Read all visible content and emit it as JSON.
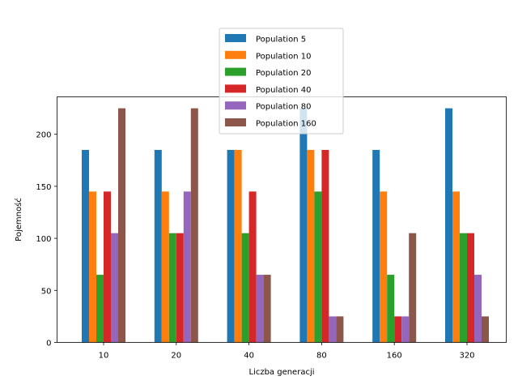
{
  "chart_data": {
    "type": "bar",
    "title": "",
    "xlabel": "Liczba generacji",
    "ylabel": "Pojemność",
    "categories": [
      "10",
      "20",
      "40",
      "80",
      "160",
      "320"
    ],
    "ylim": [
      0,
      236
    ],
    "yticks": [
      0,
      50,
      100,
      150,
      200
    ],
    "grid": false,
    "legend_position": "top-center",
    "series": [
      {
        "name": "Population 5",
        "color": "#1f77b4",
        "values": [
          185,
          185,
          185,
          225,
          185,
          225
        ]
      },
      {
        "name": "Population 10",
        "color": "#ff7f0e",
        "values": [
          145,
          145,
          185,
          185,
          145,
          145
        ]
      },
      {
        "name": "Population 20",
        "color": "#2ca02c",
        "values": [
          65,
          105,
          105,
          145,
          65,
          105
        ]
      },
      {
        "name": "Population 40",
        "color": "#d62728",
        "values": [
          145,
          105,
          145,
          185,
          25,
          105
        ]
      },
      {
        "name": "Population 80",
        "color": "#9467bd",
        "values": [
          105,
          145,
          65,
          25,
          25,
          65
        ]
      },
      {
        "name": "Population 160",
        "color": "#8c564b",
        "values": [
          225,
          225,
          65,
          25,
          105,
          25
        ]
      }
    ]
  }
}
